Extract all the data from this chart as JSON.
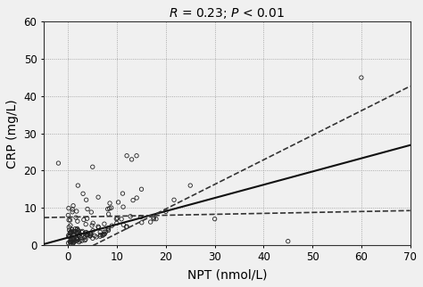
{
  "title": "$\\it{R}$ = 0.23; $\\it{P}$ < 0.01",
  "xlabel": "NPT (nmol/L)",
  "ylabel": "CRP (mg/L)",
  "xlim": [
    -5,
    70
  ],
  "ylim": [
    0,
    60
  ],
  "xticks": [
    0,
    10,
    20,
    30,
    40,
    50,
    60,
    70
  ],
  "yticks": [
    0,
    10,
    20,
    30,
    40,
    50,
    60
  ],
  "reg_intercept": 2.0,
  "reg_slope": 0.355,
  "ci_upper_intercept": -3.5,
  "ci_upper_slope": 0.66,
  "ci_lower_intercept": 7.5,
  "ci_lower_slope": 0.025,
  "background_color": "#f0f0f0",
  "scatter_facecolor": "none",
  "scatter_edgecolor": "#222222",
  "line_color": "#111111",
  "dashed_color": "#333333",
  "grid_color": "#999999",
  "grid_style": ":",
  "marker_size": 10,
  "line_width": 1.5,
  "dashed_linewidth": 1.2
}
